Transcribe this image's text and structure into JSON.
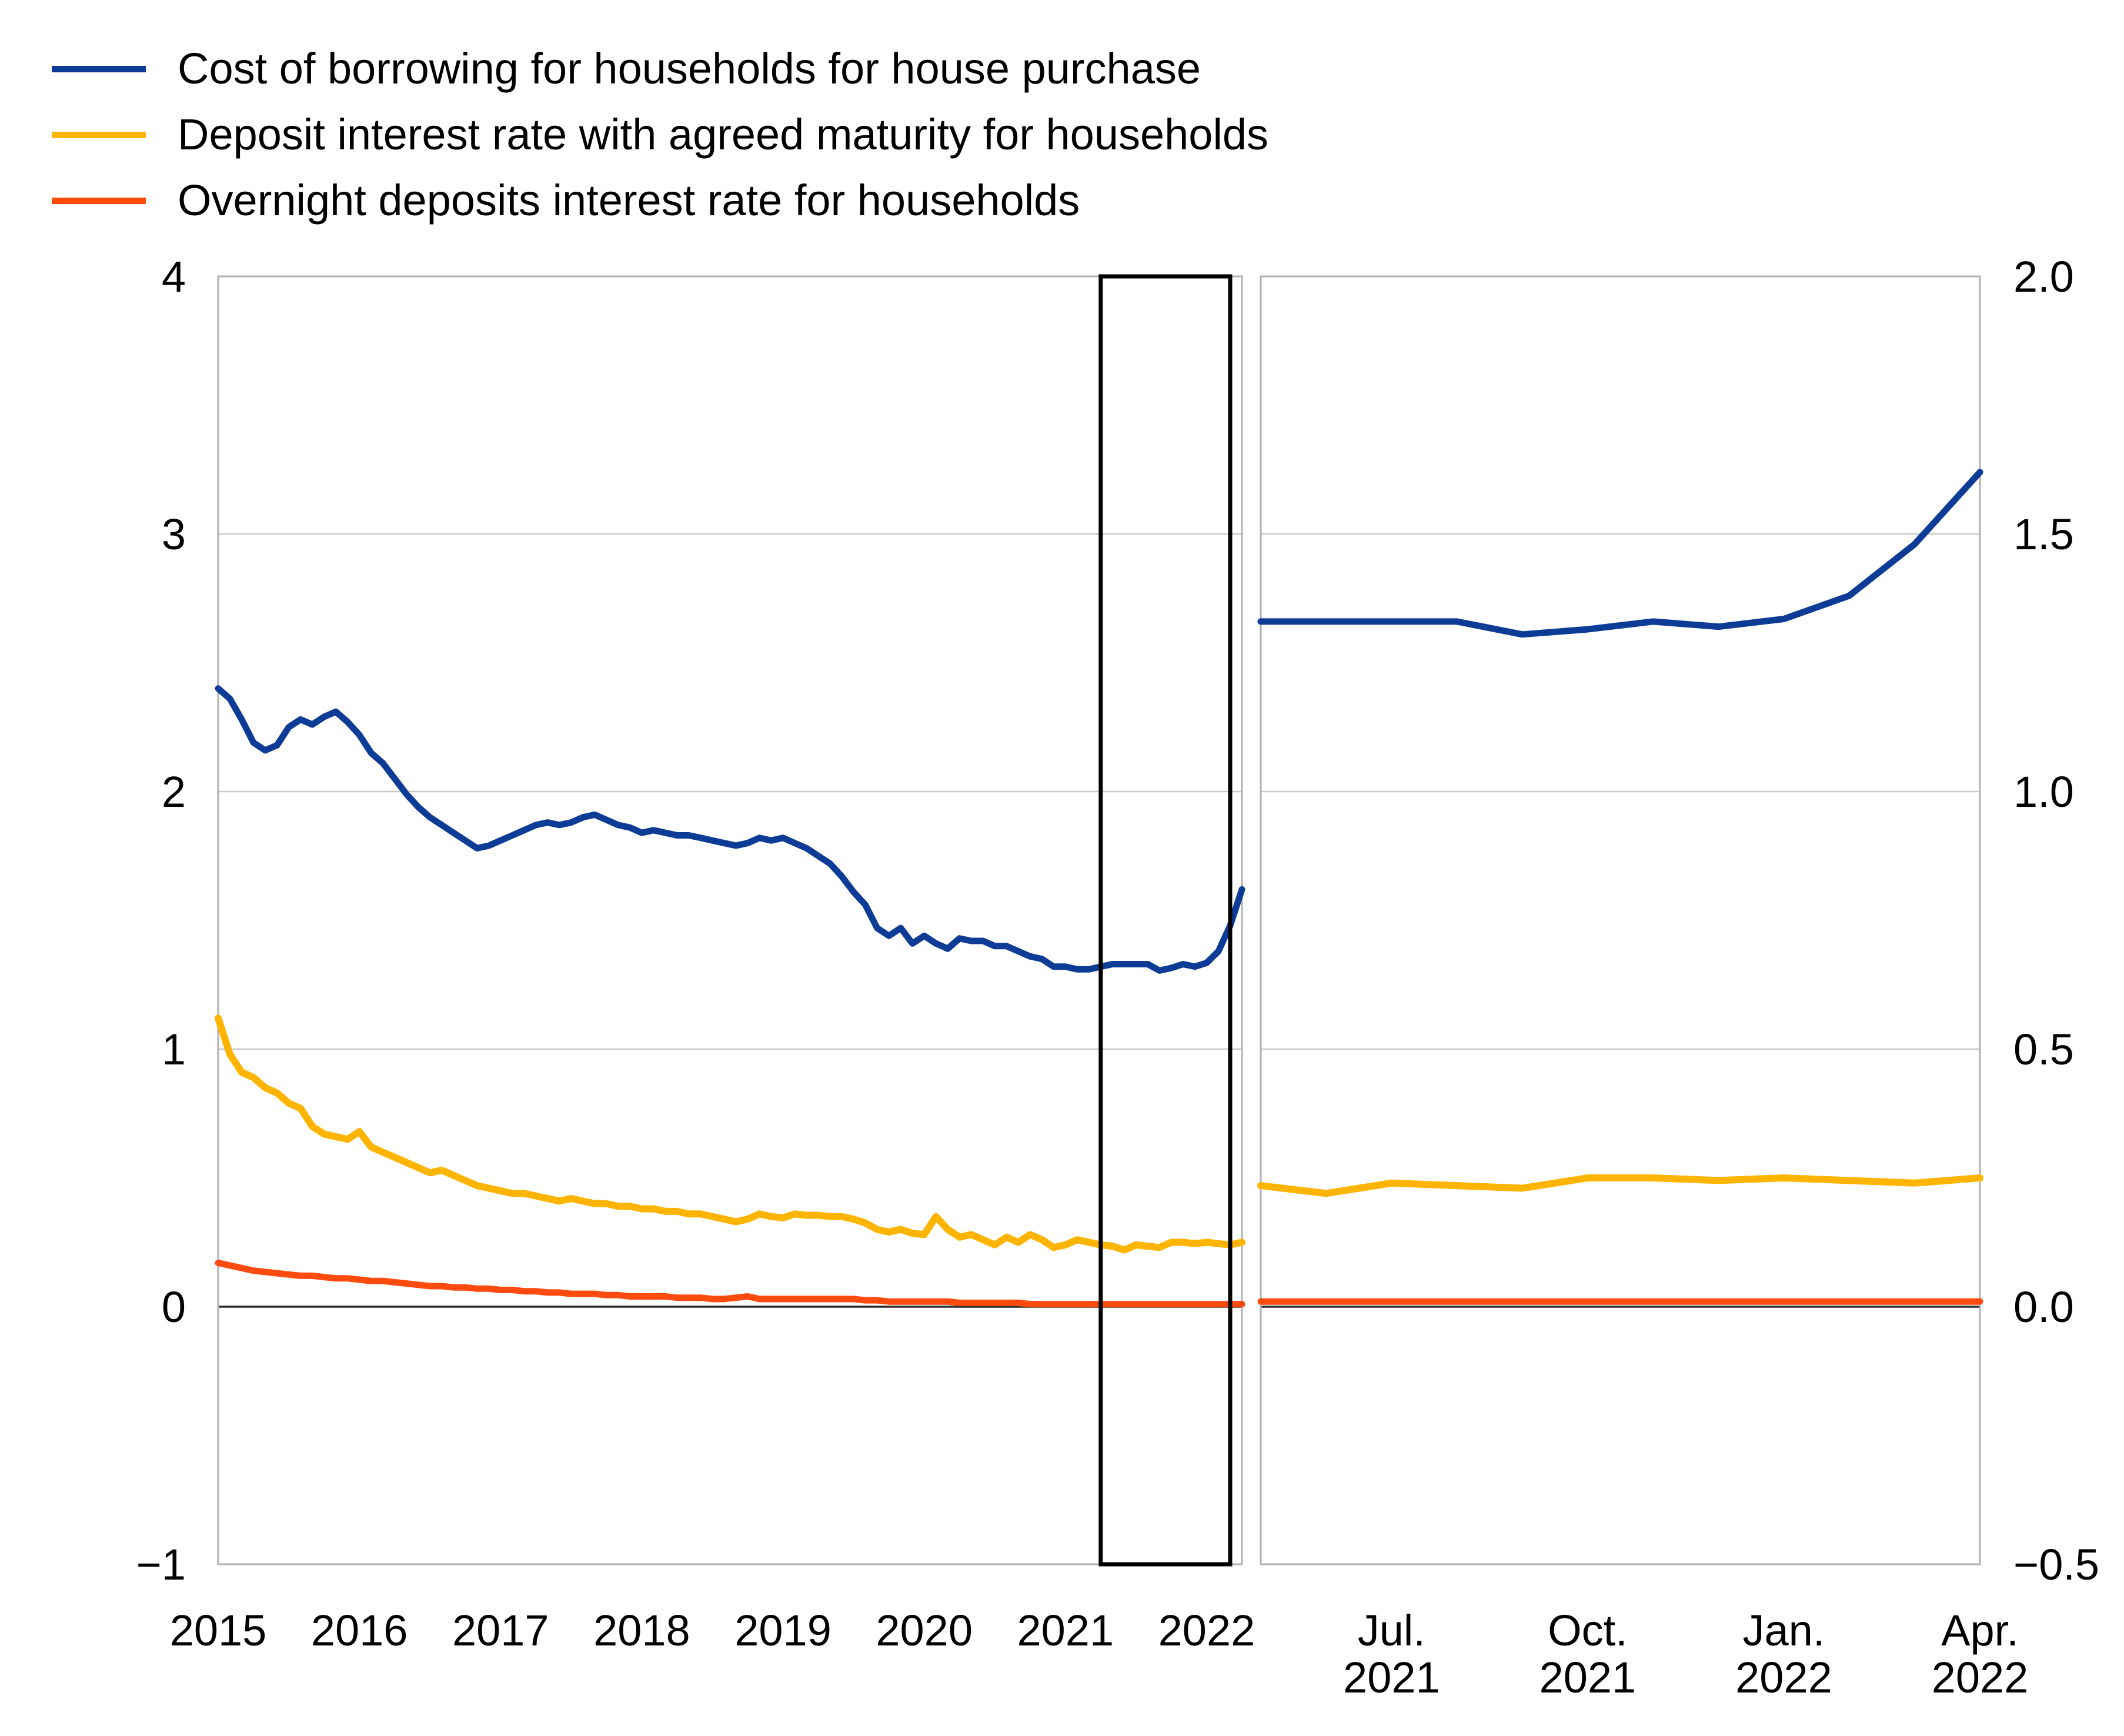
{
  "legend": {
    "items": [
      {
        "label": "Cost of borrowing for households for house purchase",
        "color": "#0D3C96"
      },
      {
        "label": "Deposit interest rate with agreed maturity for households",
        "color": "#FFB400"
      },
      {
        "label": "Overnight deposits interest rate for households",
        "color": "#FF4B0E"
      }
    ]
  },
  "chart_data": [
    {
      "type": "line",
      "panel": "main",
      "title": "",
      "x_unit": "month",
      "x_start": "2015-01",
      "x_end": "2022-04",
      "x_tick_labels": [
        "2015",
        "2016",
        "2017",
        "2018",
        "2019",
        "2020",
        "2021",
        "2022"
      ],
      "x_tick_indices": [
        0,
        12,
        24,
        36,
        48,
        60,
        72,
        84
      ],
      "ylim": [
        -1,
        4
      ],
      "y_tick_labels": [
        "4",
        "3",
        "2",
        "1",
        "0",
        "−1"
      ],
      "y_tick_values": [
        4,
        3,
        2,
        1,
        0,
        -1
      ],
      "grid_values": [
        3,
        2,
        1,
        0
      ],
      "zero_line": 0,
      "grid": "on",
      "highlight_box": {
        "x_start_index": 75,
        "x_end_index": 86
      },
      "series": [
        {
          "name": "Cost of borrowing for households for house purchase",
          "color": "#0D3C96",
          "width": 11,
          "values": [
            2.4,
            2.36,
            2.28,
            2.19,
            2.16,
            2.18,
            2.25,
            2.28,
            2.26,
            2.29,
            2.31,
            2.27,
            2.22,
            2.15,
            2.11,
            2.05,
            1.99,
            1.94,
            1.9,
            1.87,
            1.84,
            1.81,
            1.78,
            1.79,
            1.81,
            1.83,
            1.85,
            1.87,
            1.88,
            1.87,
            1.88,
            1.9,
            1.91,
            1.89,
            1.87,
            1.86,
            1.84,
            1.85,
            1.84,
            1.83,
            1.83,
            1.82,
            1.81,
            1.8,
            1.79,
            1.8,
            1.82,
            1.81,
            1.82,
            1.8,
            1.78,
            1.75,
            1.72,
            1.67,
            1.61,
            1.56,
            1.47,
            1.44,
            1.47,
            1.41,
            1.44,
            1.41,
            1.39,
            1.43,
            1.42,
            1.42,
            1.4,
            1.4,
            1.38,
            1.36,
            1.35,
            1.32,
            1.32,
            1.31,
            1.31,
            1.32,
            1.33,
            1.33,
            1.33,
            1.33,
            1.305,
            1.315,
            1.33,
            1.32,
            1.335,
            1.38,
            1.48,
            1.62
          ]
        },
        {
          "name": "Deposit interest rate with agreed maturity for households",
          "color": "#FFB400",
          "width": 12,
          "values": [
            1.12,
            0.98,
            0.91,
            0.89,
            0.85,
            0.83,
            0.79,
            0.77,
            0.7,
            0.67,
            0.66,
            0.65,
            0.68,
            0.62,
            0.6,
            0.58,
            0.56,
            0.54,
            0.52,
            0.53,
            0.51,
            0.49,
            0.47,
            0.46,
            0.45,
            0.44,
            0.44,
            0.43,
            0.42,
            0.41,
            0.42,
            0.41,
            0.4,
            0.4,
            0.39,
            0.39,
            0.38,
            0.38,
            0.37,
            0.37,
            0.36,
            0.36,
            0.35,
            0.34,
            0.33,
            0.34,
            0.36,
            0.35,
            0.345,
            0.36,
            0.355,
            0.355,
            0.35,
            0.35,
            0.34,
            0.325,
            0.3,
            0.29,
            0.3,
            0.285,
            0.28,
            0.35,
            0.3,
            0.27,
            0.28,
            0.26,
            0.24,
            0.27,
            0.25,
            0.28,
            0.26,
            0.23,
            0.24,
            0.26,
            0.25,
            0.24,
            0.235,
            0.22,
            0.24,
            0.235,
            0.23,
            0.25,
            0.25,
            0.245,
            0.25,
            0.245,
            0.24,
            0.25
          ]
        },
        {
          "name": "Overnight deposits interest rate for households",
          "color": "#FF4B0E",
          "width": 11,
          "values": [
            0.17,
            0.16,
            0.15,
            0.14,
            0.135,
            0.13,
            0.125,
            0.12,
            0.12,
            0.115,
            0.11,
            0.11,
            0.105,
            0.1,
            0.1,
            0.095,
            0.09,
            0.085,
            0.08,
            0.08,
            0.075,
            0.075,
            0.07,
            0.07,
            0.065,
            0.065,
            0.06,
            0.06,
            0.055,
            0.055,
            0.05,
            0.05,
            0.05,
            0.045,
            0.045,
            0.04,
            0.04,
            0.04,
            0.04,
            0.035,
            0.035,
            0.035,
            0.03,
            0.03,
            0.035,
            0.04,
            0.03,
            0.03,
            0.03,
            0.03,
            0.03,
            0.03,
            0.03,
            0.03,
            0.03,
            0.025,
            0.025,
            0.02,
            0.02,
            0.02,
            0.02,
            0.02,
            0.02,
            0.015,
            0.015,
            0.015,
            0.015,
            0.015,
            0.015,
            0.01,
            0.01,
            0.01,
            0.01,
            0.01,
            0.01,
            0.01,
            0.01,
            0.01,
            0.01,
            0.01,
            0.01,
            0.01,
            0.01,
            0.01,
            0.01,
            0.01,
            0.01,
            0.01
          ]
        }
      ]
    },
    {
      "type": "line",
      "panel": "zoom",
      "title": "",
      "x_unit": "month",
      "x_start": "2021-05",
      "x_end": "2022-04",
      "x_tick_labels": [
        "Jul.\n2021",
        "Oct.\n2021",
        "Jan.\n2022",
        "Apr.\n2022"
      ],
      "x_tick_indices": [
        2,
        5,
        8,
        11
      ],
      "ylim": [
        -0.5,
        2.0
      ],
      "y_tick_labels": [
        "2.0",
        "1.5",
        "1.0",
        "0.5",
        "0.0",
        "−0.5"
      ],
      "y_tick_values": [
        2.0,
        1.5,
        1.0,
        0.5,
        0.0,
        -0.5
      ],
      "grid_values": [
        1.5,
        1.0,
        0.5,
        0.0
      ],
      "zero_line": 0,
      "grid": "on",
      "series": [
        {
          "name": "Cost of borrowing for households for house purchase",
          "color": "#0D3C96",
          "width": 11,
          "values": [
            1.33,
            1.33,
            1.33,
            1.33,
            1.305,
            1.315,
            1.33,
            1.32,
            1.335,
            1.38,
            1.48,
            1.62
          ]
        },
        {
          "name": "Deposit interest rate with agreed maturity for households",
          "color": "#FFB400",
          "width": 12,
          "values": [
            0.235,
            0.22,
            0.24,
            0.235,
            0.23,
            0.25,
            0.25,
            0.245,
            0.25,
            0.245,
            0.24,
            0.25
          ]
        },
        {
          "name": "Overnight deposits interest rate for households",
          "color": "#FF4B0E",
          "width": 11,
          "values": [
            0.01,
            0.01,
            0.01,
            0.01,
            0.01,
            0.01,
            0.01,
            0.01,
            0.01,
            0.01,
            0.01,
            0.01
          ]
        }
      ]
    }
  ]
}
